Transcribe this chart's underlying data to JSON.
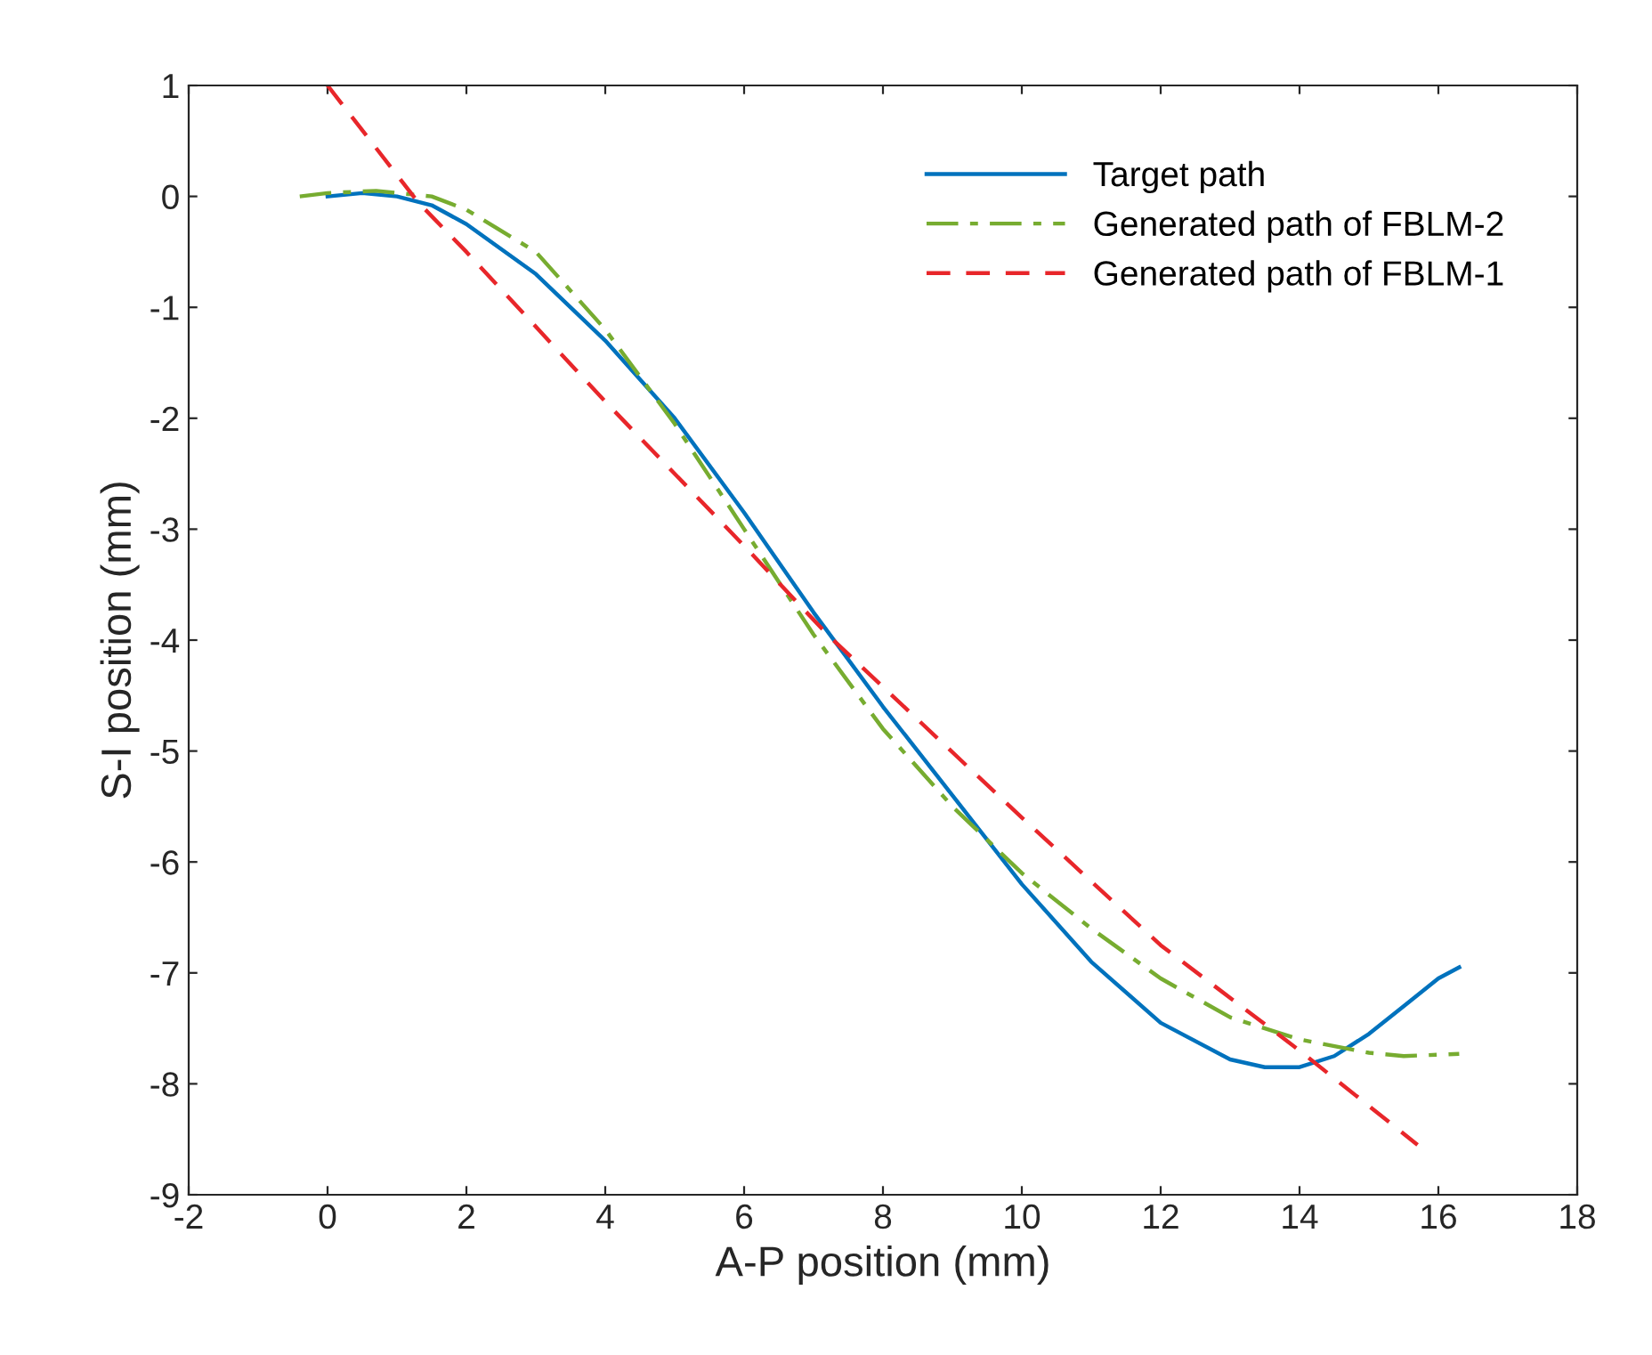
{
  "chart_data": {
    "type": "line",
    "xlabel": "A-P position (mm)",
    "ylabel": "S-I position (mm)",
    "xlim": [
      -2,
      18
    ],
    "xticks": [
      -2,
      0,
      2,
      4,
      6,
      8,
      10,
      12,
      14,
      16,
      18
    ],
    "ylim": [
      -9,
      1
    ],
    "yticks": [
      -9,
      -8,
      -7,
      -6,
      -5,
      -4,
      -3,
      -2,
      -1,
      0,
      1
    ],
    "grid": false,
    "legend": "top right",
    "series": [
      {
        "name": "Target path",
        "color": "#0072bd",
        "line_style": "solid",
        "x": [
          0,
          0.5,
          1,
          1.5,
          2,
          3,
          4,
          5,
          6,
          7,
          8,
          9,
          10,
          11,
          12,
          13,
          13.5,
          14,
          14.5,
          15,
          15.5,
          16,
          16.3
        ],
        "values": [
          0,
          0.03,
          0,
          -0.08,
          -0.25,
          -0.7,
          -1.3,
          -2.0,
          -2.85,
          -3.75,
          -4.6,
          -5.4,
          -6.2,
          -6.9,
          -7.45,
          -7.78,
          -7.85,
          -7.85,
          -7.75,
          -7.55,
          -7.3,
          -7.05,
          -6.95
        ]
      },
      {
        "name": "Generated path of FBLM-2",
        "color": "#77ac30",
        "line_style": "dashdot",
        "x": [
          -0.4,
          0,
          0.7,
          1.5,
          2,
          3,
          4,
          5,
          6,
          7,
          8,
          9,
          10,
          11,
          12,
          13,
          14,
          15,
          15.5,
          16.3
        ],
        "values": [
          0,
          0.03,
          0.05,
          0,
          -0.12,
          -0.5,
          -1.2,
          -2.05,
          -3.0,
          -3.95,
          -4.8,
          -5.5,
          -6.1,
          -6.6,
          -7.05,
          -7.4,
          -7.6,
          -7.72,
          -7.75,
          -7.73
        ]
      },
      {
        "name": "Generated path of FBLM-1",
        "color": "#e8262a",
        "line_style": "dashed",
        "x": [
          0,
          1.3,
          2,
          4,
          6,
          7.2,
          10,
          12,
          14,
          15.7
        ],
        "values": [
          1,
          -0.05,
          -0.5,
          -1.85,
          -3.15,
          -3.95,
          -5.6,
          -6.75,
          -7.7,
          -8.55
        ]
      }
    ]
  }
}
